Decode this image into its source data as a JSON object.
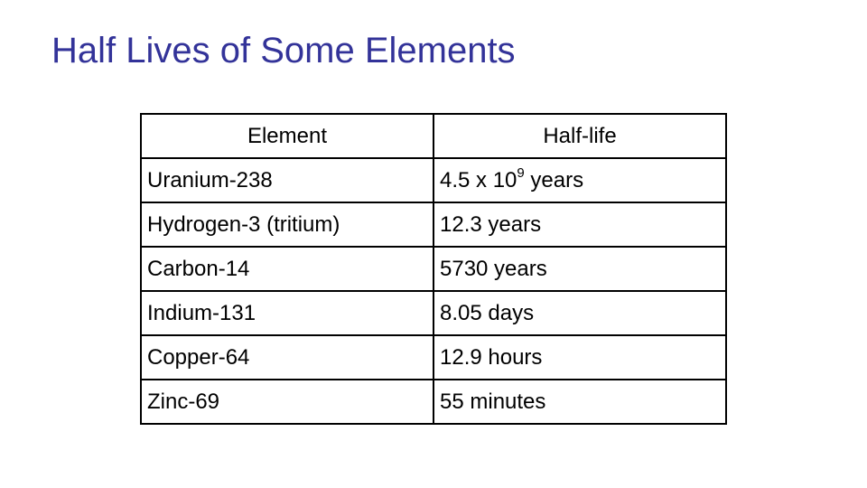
{
  "title": "Half Lives of Some Elements",
  "table": {
    "headers": [
      "Element",
      "Half-life"
    ],
    "rows": [
      {
        "element": "Uranium-238",
        "halflife": "4.5 x 10",
        "halflife_exp": "9",
        "halflife_suffix": " years"
      },
      {
        "element": "Hydrogen-3 (tritium)",
        "halflife": "12.3 years"
      },
      {
        "element": "Carbon-14",
        "halflife": "5730 years"
      },
      {
        "element": "Indium-131",
        "halflife": "8.05 days"
      },
      {
        "element": "Copper-64",
        "halflife": "12.9 hours"
      },
      {
        "element": "Zinc-69",
        "halflife": "55 minutes"
      }
    ]
  },
  "colors": {
    "title": "#333399",
    "text": "#000000",
    "border": "#000000"
  }
}
